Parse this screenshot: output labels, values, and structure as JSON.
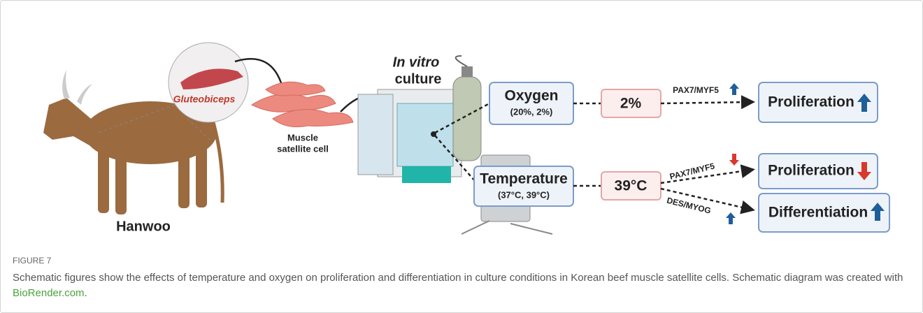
{
  "diagram": {
    "source": {
      "label": "Hanwoo",
      "muscle": "Gluteobiceps"
    },
    "cells": {
      "line1": "Muscle",
      "line2": "satellite cell"
    },
    "culture": {
      "line1": "In vitro",
      "line2": "culture"
    },
    "oxygen": {
      "label": "Oxygen",
      "range": "(20%, 2%)",
      "condition": "2%",
      "marker": "PAX7/MYF5",
      "outcome": "Proliferation"
    },
    "temperature": {
      "label": "Temperature",
      "range": "(37°C, 39°C)",
      "condition": "39°C",
      "marker1": "PAX7/MYF5",
      "outcome1": "Proliferation",
      "marker2": "DES/MYOG",
      "outcome2": "Differentiation"
    }
  },
  "caption": {
    "label": "FIGURE 7",
    "text": "Schematic figures show the effects of temperature and oxygen on proliferation and differentiation in culture conditions in Korean beef muscle satellite cells. Schematic diagram was created with ",
    "link": "BioRender.com",
    "end": "."
  }
}
